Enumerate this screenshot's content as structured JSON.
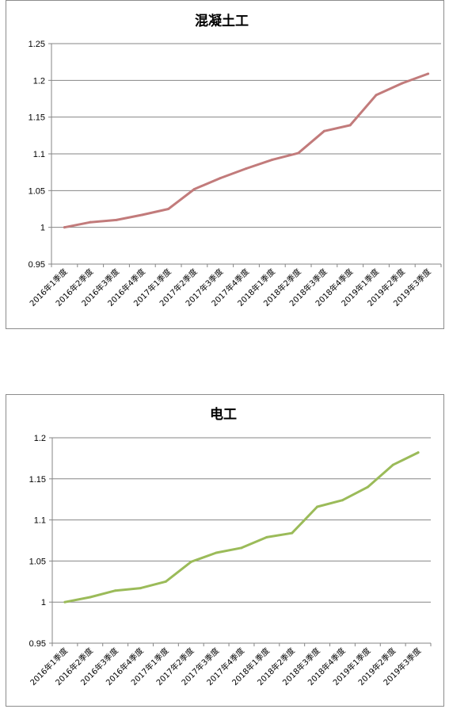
{
  "chart_data": [
    {
      "type": "line",
      "title": "混凝土工",
      "xlabel": "",
      "ylabel": "",
      "categories": [
        "2016年1季度",
        "2016年2季度",
        "2016年3季度",
        "2016年4季度",
        "2017年1季度",
        "2017年2季度",
        "2017年3季度",
        "2017年4季度",
        "2018年1季度",
        "2018年2季度",
        "2018年3季度",
        "2018年4季度",
        "2019年1季度",
        "2019年2季度",
        "2019年3季度"
      ],
      "ylim": [
        0.95,
        1.25
      ],
      "yticks": [
        "0.95",
        "1",
        "1.05",
        "1.1",
        "1.15",
        "1.2",
        "1.25"
      ],
      "yticks_values": [
        0.95,
        1.0,
        1.05,
        1.1,
        1.15,
        1.2,
        1.25
      ],
      "grid": true,
      "legend": "none",
      "color": "#c27b7b",
      "series": [
        {
          "values": [
            1.0,
            1.007,
            1.01,
            1.017,
            1.025,
            1.052,
            1.067,
            1.08,
            1.092,
            1.101,
            1.131,
            1.139,
            1.18,
            1.196,
            1.209
          ]
        }
      ]
    },
    {
      "type": "line",
      "title": "电工",
      "xlabel": "",
      "ylabel": "",
      "categories": [
        "2016年1季度",
        "2016年2季度",
        "2016年3季度",
        "2016年4季度",
        "2017年1季度",
        "2017年2季度",
        "2017年3季度",
        "2017年4季度",
        "2018年1季度",
        "2018年2季度",
        "2018年3季度",
        "2018年4季度",
        "2019年1季度",
        "2019年2季度",
        "2019年3季度"
      ],
      "ylim": [
        0.95,
        1.2
      ],
      "yticks": [
        "0.95",
        "1",
        "1.05",
        "1.1",
        "1.15",
        "1.2"
      ],
      "yticks_values": [
        0.95,
        1.0,
        1.05,
        1.1,
        1.15,
        1.2
      ],
      "grid": true,
      "legend": "none",
      "color": "#9bbb59",
      "series": [
        {
          "values": [
            1.0,
            1.006,
            1.014,
            1.017,
            1.025,
            1.049,
            1.06,
            1.066,
            1.079,
            1.084,
            1.116,
            1.124,
            1.14,
            1.167,
            1.182
          ]
        }
      ]
    }
  ]
}
